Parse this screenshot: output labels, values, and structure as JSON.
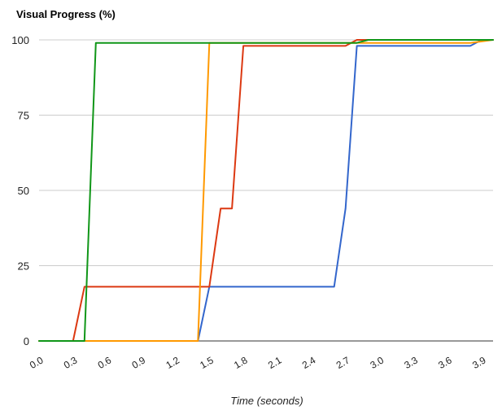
{
  "chart_data": {
    "type": "line",
    "title": "Visual Progress (%)",
    "xlabel": "Time (seconds)",
    "ylabel": "",
    "xlim": [
      0.0,
      4.0
    ],
    "ylim": [
      0,
      100
    ],
    "yticks": [
      "0",
      "25",
      "50",
      "75",
      "100"
    ],
    "xticks": [
      "0.0",
      "0.3",
      "0.6",
      "0.9",
      "1.2",
      "1.5",
      "1.8",
      "2.1",
      "2.4",
      "2.7",
      "3.0",
      "3.3",
      "3.6",
      "3.9"
    ],
    "grid": true,
    "legend": "none",
    "series": [
      {
        "color": "#3366cc",
        "x": [
          0.0,
          1.4,
          1.5,
          2.6,
          2.7,
          2.8,
          3.8,
          3.9,
          4.0
        ],
        "y": [
          0,
          0,
          18,
          18,
          44,
          98,
          98,
          100,
          100
        ]
      },
      {
        "color": "#dc3912",
        "x": [
          0.0,
          0.3,
          0.4,
          1.5,
          1.6,
          1.7,
          1.8,
          2.7,
          2.8,
          4.0
        ],
        "y": [
          0,
          0,
          18,
          18,
          44,
          44,
          98,
          98,
          100,
          100
        ]
      },
      {
        "color": "#ff9900",
        "x": [
          0.0,
          1.4,
          1.5,
          2.8,
          2.9,
          3.8,
          4.0
        ],
        "y": [
          0,
          0,
          99,
          99,
          99,
          99,
          100
        ]
      },
      {
        "color": "#109618",
        "x": [
          0.0,
          0.4,
          0.5,
          2.8,
          2.9,
          4.0
        ],
        "y": [
          0,
          0,
          99,
          99,
          100,
          100
        ]
      }
    ]
  }
}
